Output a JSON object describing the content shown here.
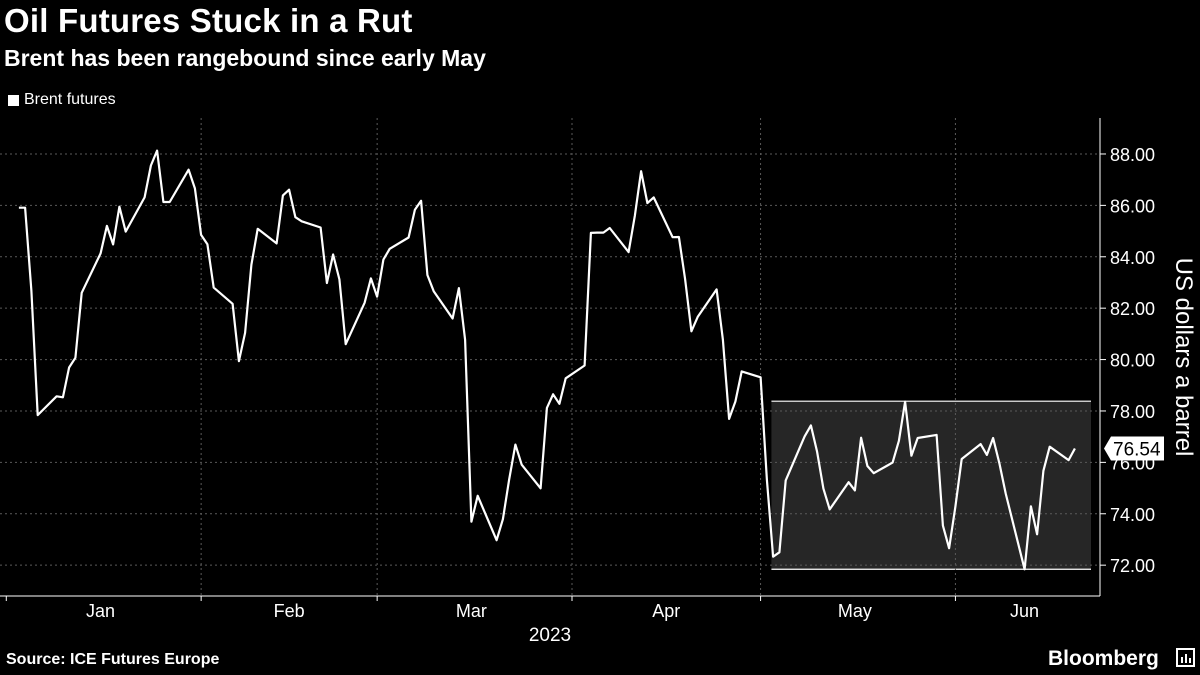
{
  "title": "Oil Futures Stuck in a Rut",
  "subtitle": "Brent has been rangebound since early May",
  "legend": {
    "label": "Brent futures"
  },
  "footer": {
    "source": "Source: ICE Futures Europe",
    "brand": "Bloomberg",
    "brand_icon": "bloomberg-terminal-icon"
  },
  "colors": {
    "background": "#000000",
    "line": "#ffffff",
    "range_box": "#262626",
    "grid": "#5a5a5a"
  },
  "chart_data": {
    "type": "line",
    "title": "Oil Futures Stuck in a Rut",
    "subtitle": "Brent has been rangebound since early May",
    "xlabel": "2023",
    "ylabel": "US dollars a barrel",
    "x_tick_labels": [
      "Jan",
      "Feb",
      "Mar",
      "Apr",
      "May",
      "Jun"
    ],
    "y_tick_labels": [
      "72.00",
      "74.00",
      "76.00",
      "78.00",
      "80.00",
      "82.00",
      "84.00",
      "86.00",
      "88.00"
    ],
    "ylim": [
      70.8,
      89.4
    ],
    "grid": true,
    "legend_position": "top-left",
    "last_value_label": "76.54",
    "highlight_range": {
      "from": "2023-05-04",
      "to": "2023-06-07",
      "low": 71.84,
      "high": 78.38
    },
    "series": [
      {
        "name": "Brent futures",
        "points": [
          [
            "2023-01-03",
            85.91
          ],
          [
            "2023-01-04",
            85.91
          ],
          [
            "2023-01-05",
            82.67
          ],
          [
            "2023-01-06",
            77.84
          ],
          [
            "2023-01-09",
            78.57
          ],
          [
            "2023-01-10",
            78.53
          ],
          [
            "2023-01-11",
            79.69
          ],
          [
            "2023-01-12",
            80.07
          ],
          [
            "2023-01-13",
            82.6
          ],
          [
            "2023-01-16",
            84.13
          ],
          [
            "2023-01-17",
            85.2
          ],
          [
            "2023-01-18",
            84.48
          ],
          [
            "2023-01-19",
            85.95
          ],
          [
            "2023-01-20",
            84.98
          ],
          [
            "2023-01-23",
            86.31
          ],
          [
            "2023-01-24",
            87.55
          ],
          [
            "2023-01-25",
            88.13
          ],
          [
            "2023-01-26",
            86.13
          ],
          [
            "2023-01-27",
            86.13
          ],
          [
            "2023-01-30",
            87.39
          ],
          [
            "2023-01-31",
            86.66
          ],
          [
            "2023-02-01",
            84.85
          ],
          [
            "2023-02-02",
            84.49
          ],
          [
            "2023-02-03",
            82.8
          ],
          [
            "2023-02-06",
            82.17
          ],
          [
            "2023-02-07",
            79.94
          ],
          [
            "2023-02-08",
            81.04
          ],
          [
            "2023-02-09",
            83.69
          ],
          [
            "2023-02-10",
            85.09
          ],
          [
            "2023-02-13",
            84.52
          ],
          [
            "2023-02-14",
            86.39
          ],
          [
            "2023-02-15",
            86.61
          ],
          [
            "2023-02-16",
            85.54
          ],
          [
            "2023-02-17",
            85.38
          ],
          [
            "2023-02-20",
            85.14
          ],
          [
            "2023-02-21",
            82.98
          ],
          [
            "2023-02-22",
            84.09
          ],
          [
            "2023-02-23",
            83.12
          ],
          [
            "2023-02-24",
            80.6
          ],
          [
            "2023-02-27",
            82.21
          ],
          [
            "2023-02-28",
            83.16
          ],
          [
            "2023-03-01",
            82.45
          ],
          [
            "2023-03-02",
            83.89
          ],
          [
            "2023-03-03",
            84.31
          ],
          [
            "2023-03-06",
            84.75
          ],
          [
            "2023-03-07",
            85.83
          ],
          [
            "2023-03-08",
            86.18
          ],
          [
            "2023-03-09",
            83.29
          ],
          [
            "2023-03-10",
            82.66
          ],
          [
            "2023-03-13",
            81.6
          ],
          [
            "2023-03-14",
            82.78
          ],
          [
            "2023-03-15",
            80.77
          ],
          [
            "2023-03-16",
            73.69
          ],
          [
            "2023-03-17",
            74.7
          ],
          [
            "2023-03-20",
            72.97
          ],
          [
            "2023-03-21",
            73.79
          ],
          [
            "2023-03-22",
            75.32
          ],
          [
            "2023-03-23",
            76.69
          ],
          [
            "2023-03-24",
            75.91
          ],
          [
            "2023-03-27",
            74.99
          ],
          [
            "2023-03-28",
            78.12
          ],
          [
            "2023-03-29",
            78.65
          ],
          [
            "2023-03-30",
            78.28
          ],
          [
            "2023-03-31",
            79.27
          ],
          [
            "2023-04-03",
            79.77
          ],
          [
            "2023-04-04",
            84.93
          ],
          [
            "2023-04-05",
            84.94
          ],
          [
            "2023-04-06",
            84.94
          ],
          [
            "2023-04-07",
            85.12
          ],
          [
            "2023-04-10",
            84.18
          ],
          [
            "2023-04-11",
            85.61
          ],
          [
            "2023-04-12",
            87.33
          ],
          [
            "2023-04-13",
            86.09
          ],
          [
            "2023-04-14",
            86.31
          ],
          [
            "2023-04-17",
            84.76
          ],
          [
            "2023-04-18",
            84.77
          ],
          [
            "2023-04-19",
            83.13
          ],
          [
            "2023-04-20",
            81.1
          ],
          [
            "2023-04-21",
            81.66
          ],
          [
            "2023-04-24",
            82.73
          ],
          [
            "2023-04-25",
            80.77
          ],
          [
            "2023-04-26",
            77.69
          ],
          [
            "2023-04-27",
            78.37
          ],
          [
            "2023-04-28",
            79.54
          ],
          [
            "2023-05-01",
            79.31
          ],
          [
            "2023-05-02",
            75.32
          ],
          [
            "2023-05-03",
            72.33
          ],
          [
            "2023-05-04",
            72.5
          ],
          [
            "2023-05-05",
            75.3
          ],
          [
            "2023-05-08",
            77.01
          ],
          [
            "2023-05-09",
            77.44
          ],
          [
            "2023-05-10",
            76.41
          ],
          [
            "2023-05-11",
            74.98
          ],
          [
            "2023-05-12",
            74.17
          ],
          [
            "2023-05-15",
            75.23
          ],
          [
            "2023-05-16",
            74.91
          ],
          [
            "2023-05-17",
            76.96
          ],
          [
            "2023-05-18",
            75.86
          ],
          [
            "2023-05-19",
            75.58
          ],
          [
            "2023-05-22",
            75.99
          ],
          [
            "2023-05-23",
            76.84
          ],
          [
            "2023-05-24",
            78.36
          ],
          [
            "2023-05-25",
            76.26
          ],
          [
            "2023-05-26",
            76.95
          ],
          [
            "2023-05-29",
            77.07
          ],
          [
            "2023-05-30",
            73.54
          ],
          [
            "2023-05-31",
            72.66
          ],
          [
            "2023-06-01",
            74.28
          ],
          [
            "2023-06-02",
            76.13
          ],
          [
            "2023-06-05",
            76.71
          ],
          [
            "2023-06-06",
            76.29
          ],
          [
            "2023-06-07",
            76.95
          ],
          [
            "2023-06-08",
            75.96
          ],
          [
            "2023-06-09",
            74.79
          ],
          [
            "2023-06-12",
            71.84
          ],
          [
            "2023-06-13",
            74.29
          ],
          [
            "2023-06-14",
            73.2
          ],
          [
            "2023-06-15",
            75.67
          ],
          [
            "2023-06-16",
            76.61
          ],
          [
            "2023-06-19",
            76.09
          ],
          [
            "2023-06-20",
            76.54
          ]
        ]
      }
    ]
  }
}
